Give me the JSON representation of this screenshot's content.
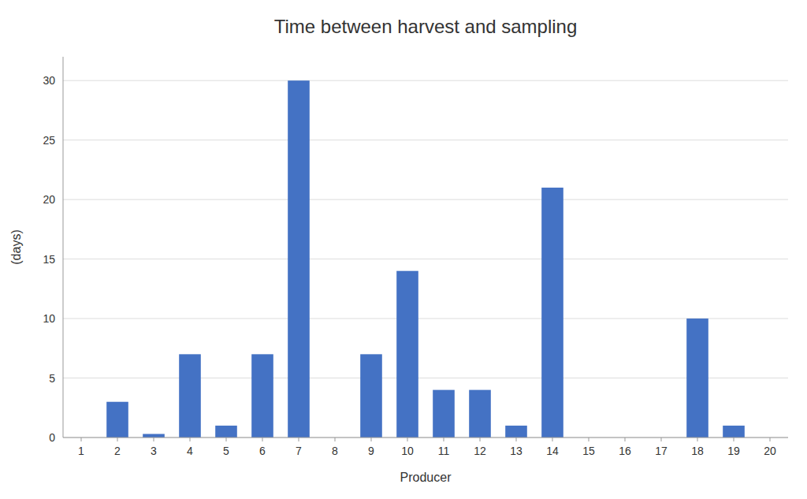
{
  "chart_data": {
    "type": "bar",
    "title": "Time between harvest and sampling",
    "x_label": "Producer",
    "y_label": "(days)",
    "x": [
      2,
      3,
      4,
      5,
      6,
      7,
      9,
      10,
      11,
      12,
      13,
      14,
      18,
      19
    ],
    "values": [
      3,
      0.3,
      7,
      1,
      7,
      30,
      7,
      14,
      4,
      4,
      1,
      21,
      10,
      1
    ],
    "color": "#4472C4",
    "xlim": [
      0.5,
      20.5
    ],
    "xticks": [
      1,
      2,
      3,
      4,
      5,
      6,
      7,
      8,
      9,
      10,
      11,
      12,
      13,
      14,
      15,
      16,
      17,
      18,
      19,
      20
    ],
    "ylim": [
      0,
      32
    ],
    "yticks": [
      0,
      5,
      10,
      15,
      20,
      25,
      30
    ],
    "grid": true
  }
}
